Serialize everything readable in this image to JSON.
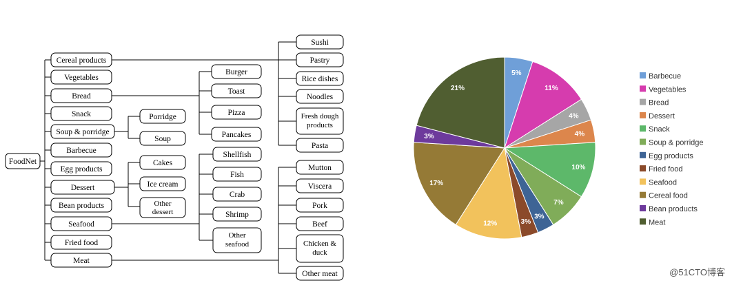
{
  "tree": {
    "root": "FoodNet",
    "categories": [
      "Cereal products",
      "Vegetables",
      "Bread",
      "Snack",
      "Soup & porridge",
      "Barbecue",
      "Egg products",
      "Dessert",
      "Bean products",
      "Seafood",
      "Fried food",
      "Meat"
    ],
    "soup_children": [
      "Porridge",
      "Soup"
    ],
    "dessert_children": [
      "Cakes",
      "Ice cream",
      "Other dessert"
    ],
    "bread_children": [
      "Burger",
      "Toast",
      "Pizza",
      "Pancakes"
    ],
    "cereal_children": [
      "Sushi",
      "Pastry",
      "Rice dishes",
      "Noodles",
      "Fresh dough products",
      "Pasta"
    ],
    "seafood_children": [
      "Shellfish",
      "Fish",
      "Crab",
      "Shrimp",
      "Other seafood"
    ],
    "meat_children": [
      "Mutton",
      "Viscera",
      "Pork",
      "Beef",
      "Chicken & duck",
      "Other meat"
    ]
  },
  "chart_data": {
    "type": "pie",
    "slices": [
      {
        "label": "Barbecue",
        "value": 5,
        "display": "5%",
        "color": "#6f9fd8"
      },
      {
        "label": "Vegetables",
        "value": 11,
        "display": "11%",
        "color": "#d63cae"
      },
      {
        "label": "Bread",
        "value": 4,
        "display": "4%",
        "color": "#a6a6a6"
      },
      {
        "label": "Dessert",
        "value": 4,
        "display": "4%",
        "color": "#dc864c"
      },
      {
        "label": "Snack",
        "value": 10,
        "display": "10%",
        "color": "#5db86a"
      },
      {
        "label": "Soup & porridge",
        "value": 7,
        "display": "7%",
        "color": "#80ac59"
      },
      {
        "label": "Egg products",
        "value": 3,
        "display": "3%",
        "color": "#3e6495"
      },
      {
        "label": "Fried food",
        "value": 3,
        "display": "3%",
        "color": "#8b4a2a"
      },
      {
        "label": "Seafood",
        "value": 12,
        "display": "12%",
        "color": "#f2c25c"
      },
      {
        "label": "Cereal food",
        "value": 17,
        "display": "17%",
        "color": "#957a36"
      },
      {
        "label": "Bean products",
        "value": 3,
        "display": "3%",
        "color": "#6d3a9c"
      },
      {
        "label": "Meat",
        "value": 21,
        "display": "21%",
        "color": "#505e31"
      }
    ],
    "legend_position": "right"
  },
  "watermark": "@51CTO博客"
}
